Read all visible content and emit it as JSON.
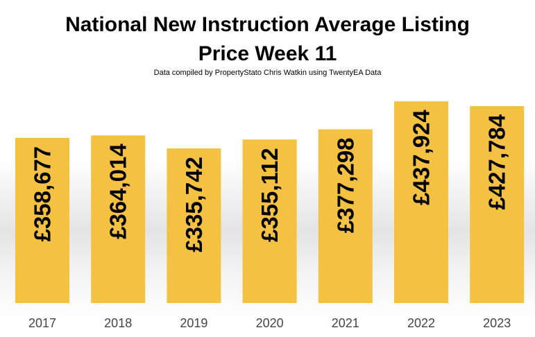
{
  "title_line1": "National New Instruction Average Listing",
  "title_line2": "Price Week 11",
  "subtitle": "Data compiled by PropertyStato Chris Watkin using TwentyEA Data",
  "colors": {
    "bar": "#F4C142",
    "text": "#000000",
    "axis_label": "#444444"
  },
  "chart_data": {
    "type": "bar",
    "title": "National New Instruction Average Listing Price Week 11",
    "subtitle": "Data compiled by PropertyStato Chris Watkin using TwentyEA Data",
    "categories": [
      "2017",
      "2018",
      "2019",
      "2020",
      "2021",
      "2022",
      "2023"
    ],
    "values": [
      358677,
      364014,
      335742,
      355112,
      377298,
      437924,
      427784
    ],
    "data_labels": [
      "£358,677",
      "£364,014",
      "£335,742",
      "£355,112",
      "£377,298",
      "£437,924",
      "£427,784"
    ],
    "xlabel": "",
    "ylabel": "",
    "ylim": [
      0,
      450000
    ],
    "grid": false,
    "legend": "none"
  }
}
